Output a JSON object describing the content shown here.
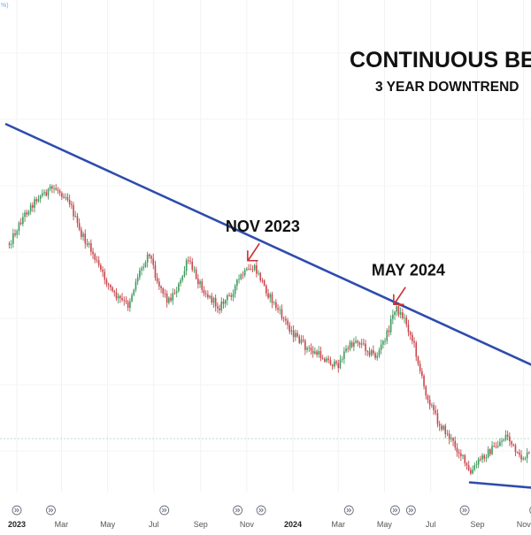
{
  "chart_data": {
    "type": "candlestick",
    "title": "CONTINUOUS BEA",
    "subtitle": "3 YEAR DOWNTREND",
    "x_ticks": [
      {
        "label": "2023",
        "date": "2023-01-01",
        "bold": true
      },
      {
        "label": "Mar",
        "date": "2023-03-01"
      },
      {
        "label": "May",
        "date": "2023-05-01"
      },
      {
        "label": "Jul",
        "date": "2023-07-01"
      },
      {
        "label": "Sep",
        "date": "2023-09-01"
      },
      {
        "label": "Nov",
        "date": "2023-11-01"
      },
      {
        "label": "2024",
        "date": "2024-01-01",
        "bold": true
      },
      {
        "label": "Mar",
        "date": "2024-03-01"
      },
      {
        "label": "May",
        "date": "2024-05-01"
      },
      {
        "label": "Jul",
        "date": "2024-07-01"
      },
      {
        "label": "Sep",
        "date": "2024-09-01"
      },
      {
        "label": "Nov",
        "date": "2024-11-01"
      }
    ],
    "event_marker_dates": [
      "2023-01-01",
      "2023-02-15",
      "2023-07-15",
      "2023-10-20",
      "2023-11-20",
      "2024-03-15",
      "2024-05-15",
      "2024-06-05",
      "2024-08-15",
      "2024-11-15"
    ],
    "price_path": [
      {
        "date": "2022-12-22",
        "price": 0.62
      },
      {
        "date": "2023-01-10",
        "price": 0.76
      },
      {
        "date": "2023-01-30",
        "price": 0.86
      },
      {
        "date": "2023-02-20",
        "price": 0.9
      },
      {
        "date": "2023-03-10",
        "price": 0.85
      },
      {
        "date": "2023-03-25",
        "price": 0.68
      },
      {
        "date": "2023-04-10",
        "price": 0.58
      },
      {
        "date": "2023-04-25",
        "price": 0.46
      },
      {
        "date": "2023-05-10",
        "price": 0.36
      },
      {
        "date": "2023-05-28",
        "price": 0.31
      },
      {
        "date": "2023-06-10",
        "price": 0.46
      },
      {
        "date": "2023-06-25",
        "price": 0.58
      },
      {
        "date": "2023-07-05",
        "price": 0.44
      },
      {
        "date": "2023-07-20",
        "price": 0.33
      },
      {
        "date": "2023-08-05",
        "price": 0.42
      },
      {
        "date": "2023-08-15",
        "price": 0.54
      },
      {
        "date": "2023-08-28",
        "price": 0.44
      },
      {
        "date": "2023-09-10",
        "price": 0.36
      },
      {
        "date": "2023-09-25",
        "price": 0.3
      },
      {
        "date": "2023-10-10",
        "price": 0.36
      },
      {
        "date": "2023-10-25",
        "price": 0.46
      },
      {
        "date": "2023-11-10",
        "price": 0.5
      },
      {
        "date": "2023-11-20",
        "price": 0.44
      },
      {
        "date": "2023-11-30",
        "price": 0.36
      },
      {
        "date": "2023-12-15",
        "price": 0.27
      },
      {
        "date": "2024-01-01",
        "price": 0.17
      },
      {
        "date": "2024-01-20",
        "price": 0.09
      },
      {
        "date": "2024-02-10",
        "price": 0.05
      },
      {
        "date": "2024-02-28",
        "price": 0.0
      },
      {
        "date": "2024-03-10",
        "price": 0.08
      },
      {
        "date": "2024-03-25",
        "price": 0.14
      },
      {
        "date": "2024-04-05",
        "price": 0.1
      },
      {
        "date": "2024-04-20",
        "price": 0.05
      },
      {
        "date": "2024-05-05",
        "price": 0.17
      },
      {
        "date": "2024-05-15",
        "price": 0.3
      },
      {
        "date": "2024-05-28",
        "price": 0.24
      },
      {
        "date": "2024-06-10",
        "price": 0.1
      },
      {
        "date": "2024-06-22",
        "price": -0.1
      },
      {
        "date": "2024-07-10",
        "price": -0.27
      },
      {
        "date": "2024-07-25",
        "price": -0.35
      },
      {
        "date": "2024-08-10",
        "price": -0.44
      },
      {
        "date": "2024-08-22",
        "price": -0.54
      },
      {
        "date": "2024-09-05",
        "price": -0.46
      },
      {
        "date": "2024-09-25",
        "price": -0.4
      },
      {
        "date": "2024-10-10",
        "price": -0.34
      },
      {
        "date": "2024-10-25",
        "price": -0.46
      },
      {
        "date": "2024-11-10",
        "price": -0.44
      },
      {
        "date": "2024-11-25",
        "price": -0.36
      },
      {
        "date": "2024-12-10",
        "price": -0.44
      }
    ],
    "trendlines": [
      {
        "color": "#2e4cad",
        "from": {
          "date": "2022-12-18",
          "price": 1.22
        },
        "to": {
          "date": "2024-12-22",
          "price": -0.06
        }
      },
      {
        "color": "#2e4cad",
        "from": {
          "date": "2024-08-22",
          "price": -0.58
        },
        "to": {
          "date": "2024-12-22",
          "price": -0.62
        }
      }
    ],
    "horizontal_line": {
      "price": -0.36,
      "color": "#b7e2c4"
    },
    "annotations": [
      {
        "text": "NOV 2023",
        "target": {
          "date": "2023-11-01",
          "price": 0.53
        }
      },
      {
        "text": "MAY 2024",
        "target": {
          "date": "2024-05-12",
          "price": 0.31
        }
      }
    ],
    "corner_label": "%)",
    "colors": {
      "up": "#3f9a5e",
      "down": "#c8474c",
      "trendline": "#2e4cad",
      "arrow": "#cc3333"
    },
    "grid": true
  }
}
